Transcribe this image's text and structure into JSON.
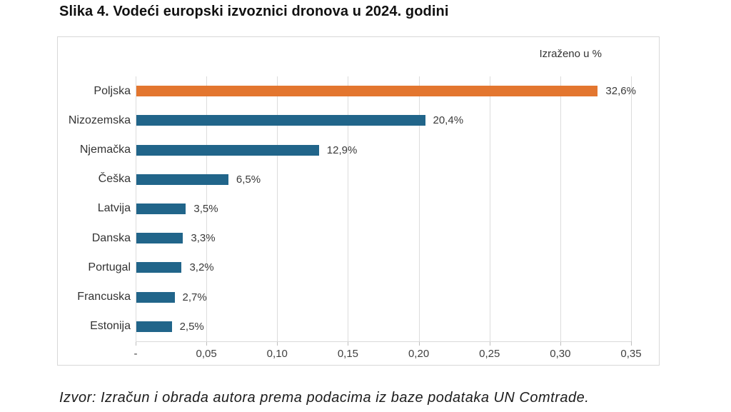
{
  "title": "Slika 4. Vodeći europski izvoznici dronova u 2024. godini",
  "source": "Izvor: Izračun i obrada autora prema podacima iz baze podataka UN Comtrade.",
  "chart_data": {
    "type": "bar",
    "orientation": "horizontal",
    "title": "Slika 4. Vodeći europski izvoznici dronova u 2024. godini",
    "annotation": "Izraženo u %",
    "categories": [
      "Poljska",
      "Nizozemska",
      "Njemačka",
      "Češka",
      "Latvija",
      "Danska",
      "Portugal",
      "Francuska",
      "Estonija"
    ],
    "values": [
      0.326,
      0.204,
      0.129,
      0.065,
      0.035,
      0.033,
      0.032,
      0.027,
      0.025
    ],
    "value_labels": [
      "32,6%",
      "20,4%",
      "12,9%",
      "6,5%",
      "3,5%",
      "3,3%",
      "3,2%",
      "2,7%",
      "2,5%"
    ],
    "x_ticks": [
      "-",
      "0,05",
      "0,10",
      "0,15",
      "0,20",
      "0,25",
      "0,30",
      "0,35"
    ],
    "x_tick_values": [
      0,
      0.05,
      0.1,
      0.15,
      0.2,
      0.25,
      0.3,
      0.35
    ],
    "xlim": [
      0,
      0.35
    ],
    "grid": true,
    "legend": "none",
    "highlight_index": 0,
    "colors": {
      "highlight_bar": "#e3762f",
      "default_bar": "#21658a",
      "gridline": "#dcdcdc",
      "box_border": "#d8d8d8",
      "text": "#333333"
    }
  }
}
